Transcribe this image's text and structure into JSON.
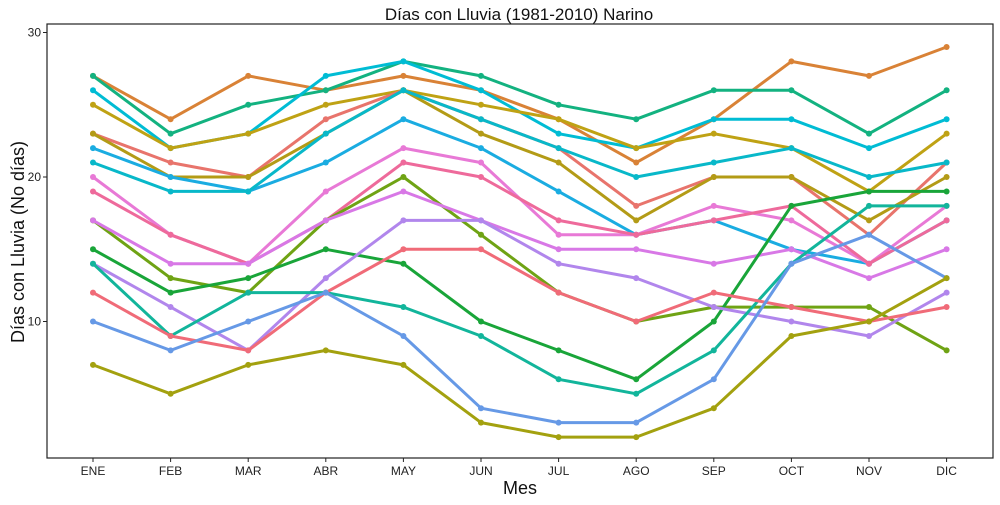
{
  "chart_data": {
    "type": "line",
    "title": "Días con Lluvia (1981-2010)  Narino",
    "xlabel": "Mes",
    "ylabel": "Días con Lluvia (No días)",
    "categories": [
      "ENE",
      "FEB",
      "MAR",
      "ABR",
      "MAY",
      "JUN",
      "JUL",
      "AGO",
      "SEP",
      "OCT",
      "NOV",
      "DIC"
    ],
    "yticks": [
      10,
      20,
      30
    ],
    "ylim": [
      1,
      30.5
    ],
    "grid": false,
    "legend": "none",
    "series": [
      {
        "color": "#D98236",
        "values": [
          27,
          24,
          27,
          26,
          27,
          26,
          24,
          21,
          24,
          28,
          27,
          29
        ]
      },
      {
        "color": "#13B280",
        "values": [
          27,
          23,
          25,
          26,
          28,
          27,
          25,
          24,
          26,
          26,
          23,
          26
        ]
      },
      {
        "color": "#00BCD4",
        "values": [
          26,
          22,
          23,
          27,
          28,
          26,
          23,
          22,
          24,
          24,
          22,
          24
        ]
      },
      {
        "color": "#BFA214",
        "values": [
          25,
          22,
          23,
          25,
          26,
          25,
          24,
          22,
          23,
          22,
          19,
          23
        ]
      },
      {
        "color": "#E8746C",
        "values": [
          23,
          21,
          20,
          24,
          26,
          24,
          22,
          18,
          20,
          20,
          16,
          21
        ]
      },
      {
        "color": "#B39B16",
        "values": [
          23,
          20,
          20,
          23,
          26,
          23,
          21,
          17,
          20,
          20,
          17,
          20
        ]
      },
      {
        "color": "#1AACE1",
        "values": [
          22,
          20,
          19,
          21,
          24,
          22,
          19,
          16,
          17,
          15,
          14,
          17
        ]
      },
      {
        "color": "#08B8C9",
        "values": [
          21,
          19,
          19,
          23,
          26,
          24,
          22,
          20,
          21,
          22,
          20,
          21
        ]
      },
      {
        "color": "#E879D6",
        "values": [
          20,
          16,
          14,
          19,
          22,
          21,
          16,
          16,
          18,
          17,
          14,
          18
        ]
      },
      {
        "color": "#EE6A9B",
        "values": [
          19,
          16,
          14,
          17,
          21,
          20,
          17,
          16,
          17,
          18,
          14,
          17
        ]
      },
      {
        "color": "#6FA314",
        "values": [
          17,
          13,
          12,
          17,
          20,
          16,
          12,
          10,
          11,
          11,
          11,
          8
        ]
      },
      {
        "color": "#D878E6",
        "values": [
          17,
          14,
          14,
          17,
          19,
          17,
          15,
          15,
          14,
          15,
          13,
          15
        ]
      },
      {
        "color": "#19A539",
        "values": [
          15,
          12,
          13,
          15,
          14,
          10,
          8,
          6,
          10,
          18,
          19,
          19
        ]
      },
      {
        "color": "#B186EC",
        "values": [
          14,
          11,
          8,
          13,
          17,
          17,
          14,
          13,
          11,
          10,
          9,
          12
        ]
      },
      {
        "color": "#12B59B",
        "values": [
          14,
          9,
          12,
          12,
          11,
          9,
          6,
          5,
          8,
          14,
          18,
          18
        ]
      },
      {
        "color": "#F06B78",
        "values": [
          12,
          9,
          8,
          12,
          15,
          15,
          12,
          10,
          12,
          11,
          10,
          11
        ]
      },
      {
        "color": "#6699E6",
        "values": [
          10,
          8,
          10,
          12,
          9,
          4,
          3,
          3,
          6,
          14,
          16,
          13
        ]
      },
      {
        "color": "#A3A10F",
        "values": [
          7,
          5,
          7,
          8,
          7,
          3,
          2,
          2,
          4,
          9,
          10,
          13
        ]
      }
    ]
  }
}
